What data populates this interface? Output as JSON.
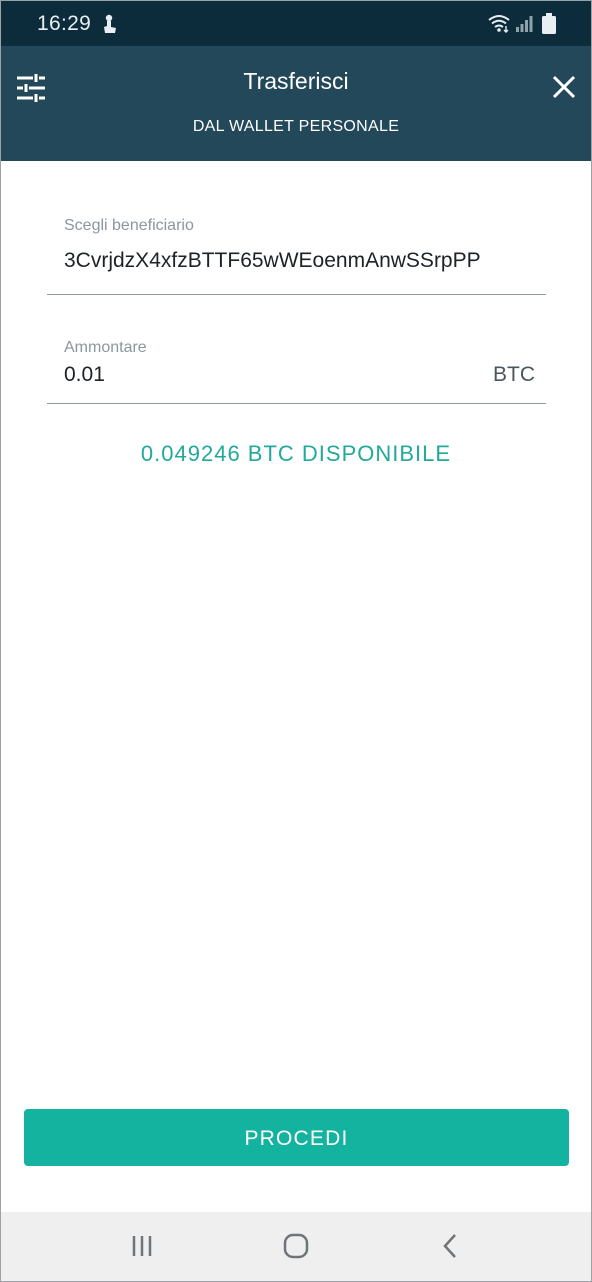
{
  "status_bar": {
    "time": "16:29",
    "notification_icon": "touch-gesture-icon",
    "wifi_icon": "wifi-icon",
    "signal_icon": "signal-icon",
    "battery_icon": "battery-icon"
  },
  "header": {
    "title": "Trasferisci",
    "subtitle": "DAL WALLET PERSONALE",
    "left_icon": "sliders-icon",
    "right_icon": "close-icon"
  },
  "form": {
    "recipient": {
      "label": "Scegli beneficiario",
      "value": "3CvrjdzX4xfzBTTF65wWEoenmAnwSSrpPP"
    },
    "amount": {
      "label": "Ammontare",
      "value": "0.01",
      "unit": "BTC"
    },
    "available": "0.049246 BTC DISPONIBILE"
  },
  "actions": {
    "proceed_label": "PROCEDI"
  },
  "colors": {
    "status_bar": "#0c2c3b",
    "header": "#22485a",
    "accent": "#14b3a0",
    "available_text": "#21a99a"
  }
}
